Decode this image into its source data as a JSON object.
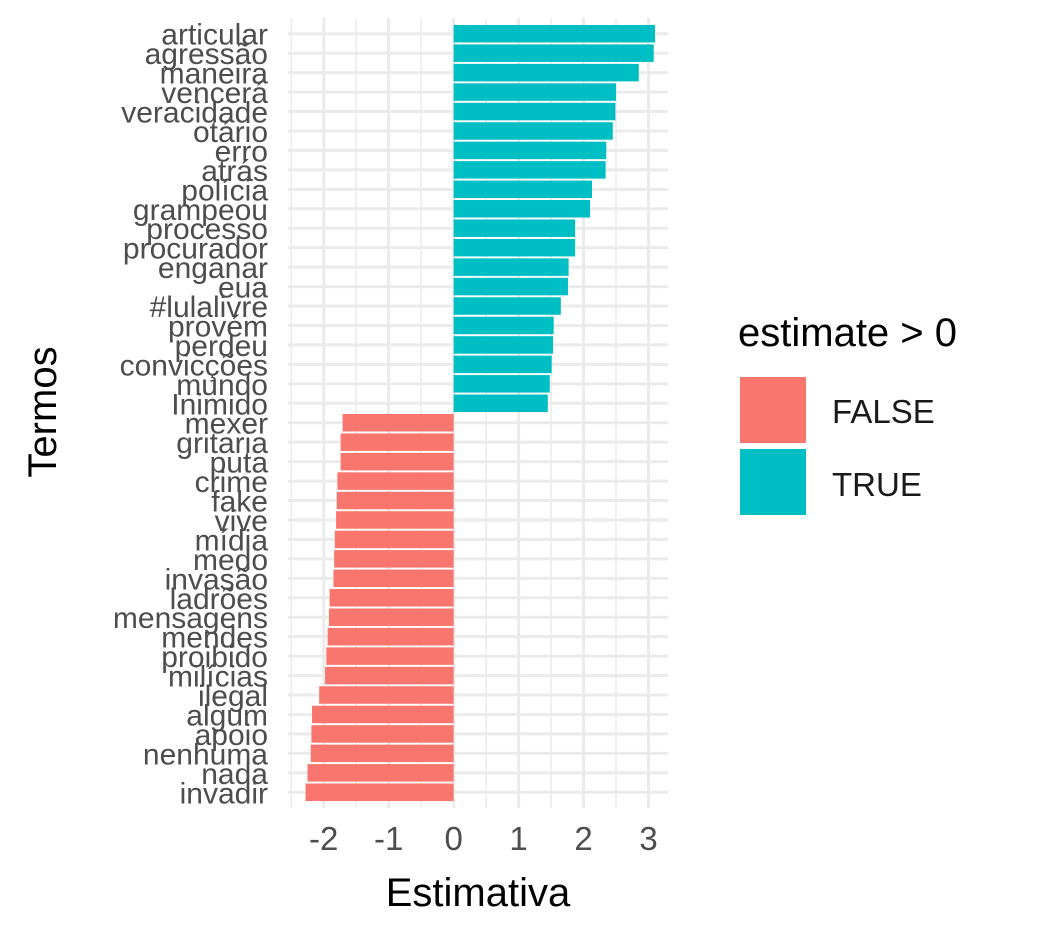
{
  "chart_data": {
    "type": "bar",
    "orientation": "horizontal",
    "xlabel": "Estimativa",
    "ylabel": "Termos",
    "xlim": [
      -2.55,
      3.3
    ],
    "x_ticks": [
      -2,
      -1,
      0,
      1,
      2,
      3
    ],
    "x_tick_labels": [
      "-2",
      "-1",
      "0",
      "1",
      "2",
      "3"
    ],
    "grid": true,
    "legend": {
      "title": "estimate > 0",
      "position": "right",
      "entries": [
        {
          "label": "FALSE",
          "color": "#F8766D"
        },
        {
          "label": "TRUE",
          "color": "#00BFC4"
        }
      ]
    },
    "categories": [
      "articular",
      "agressão",
      "maneira",
      "vencerá",
      "veracidade",
      "otário",
      "erro",
      "atrás",
      "polícia",
      "grampeou",
      "processo",
      "procurador",
      "enganar",
      "eua",
      "#lulalivre",
      "provém",
      "perdeu",
      "convicções",
      "mundo",
      "Inimido",
      "mexer",
      "gritaria",
      "puta",
      "crime",
      "fake",
      "vive",
      "mídia",
      "medo",
      "invasão",
      "ladrões",
      "mensagens",
      "mendes",
      "proibido",
      "milícias",
      "ilegal",
      "algum",
      "apoio",
      "nenhuma",
      "nada",
      "invadir"
    ],
    "values": [
      3.1,
      3.08,
      2.85,
      2.5,
      2.49,
      2.45,
      2.35,
      2.34,
      2.13,
      2.1,
      1.87,
      1.87,
      1.77,
      1.76,
      1.65,
      1.54,
      1.53,
      1.51,
      1.48,
      1.45,
      -1.71,
      -1.74,
      -1.74,
      -1.79,
      -1.8,
      -1.81,
      -1.83,
      -1.84,
      -1.85,
      -1.91,
      -1.92,
      -1.94,
      -1.96,
      -1.98,
      -2.07,
      -2.18,
      -2.19,
      -2.2,
      -2.25,
      -2.28
    ]
  }
}
